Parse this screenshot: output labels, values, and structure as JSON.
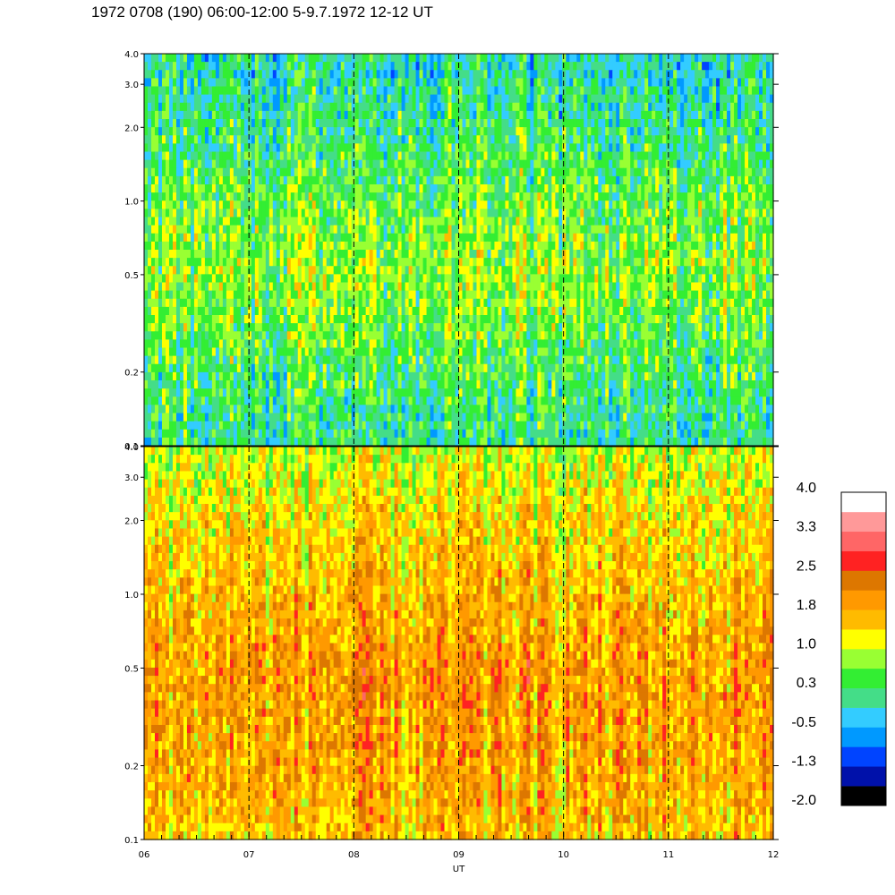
{
  "title": "1972 0708 (190) 06:00-12:00 5-9.7.1972  12-12 UT",
  "chart_data": {
    "type": "heatmap",
    "xlabel": "UT",
    "x_ticks": [
      "06",
      "07",
      "08",
      "09",
      "10",
      "11",
      "12"
    ],
    "x_range": [
      6,
      12
    ],
    "panels": [
      {
        "name": "",
        "y_scale": "log",
        "y_range": [
          0.1,
          4.0
        ],
        "y_ticks": [
          {
            "value": 0.1,
            "label": "0.1"
          },
          {
            "value": 0.2,
            "label": "0.2"
          },
          {
            "value": 0.5,
            "label": "0.5"
          },
          {
            "value": 1.0,
            "label": "1.0"
          },
          {
            "value": 2.0,
            "label": "2.0"
          },
          {
            "value": 3.0,
            "label": "3.0"
          },
          {
            "value": 4.0,
            "label": "4.0"
          }
        ],
        "typical_level_by_freq": [
          {
            "freq": 0.1,
            "level": 0.0
          },
          {
            "freq": 0.2,
            "level": 0.3
          },
          {
            "freq": 0.5,
            "level": 0.8
          },
          {
            "freq": 1.0,
            "level": 0.5
          },
          {
            "freq": 2.0,
            "level": 0.1
          },
          {
            "freq": 4.0,
            "level": -0.2
          }
        ]
      },
      {
        "name": "",
        "y_scale": "log",
        "y_range": [
          0.1,
          4.0
        ],
        "y_ticks": [
          {
            "value": 0.1,
            "label": "0.1"
          },
          {
            "value": 0.2,
            "label": "0.2"
          },
          {
            "value": 0.5,
            "label": "0.5"
          },
          {
            "value": 1.0,
            "label": "1.0"
          },
          {
            "value": 2.0,
            "label": "2.0"
          },
          {
            "value": 3.0,
            "label": "3.0"
          },
          {
            "value": 4.0,
            "label": "4.0"
          }
        ],
        "typical_level_by_freq": [
          {
            "freq": 0.1,
            "level": 1.6
          },
          {
            "freq": 0.2,
            "level": 1.9
          },
          {
            "freq": 0.5,
            "level": 2.0
          },
          {
            "freq": 1.0,
            "level": 1.7
          },
          {
            "freq": 2.0,
            "level": 1.4
          },
          {
            "freq": 4.0,
            "level": 0.9
          }
        ]
      }
    ],
    "hour_markers": [
      7,
      8,
      9,
      10,
      11
    ],
    "colorbar": {
      "range": [
        -2.4,
        4.4
      ],
      "colors": [
        "#000000",
        "#0011aa",
        "#0044ff",
        "#0099ff",
        "#33ccff",
        "#44dd88",
        "#33ee33",
        "#99ff33",
        "#ffff00",
        "#ffbb00",
        "#ff9900",
        "#dd7700",
        "#ff2222",
        "#ff6666",
        "#ff9999",
        "#ffffff"
      ],
      "labels": [
        "-2.0",
        "-1.3",
        "-0.5",
        "0.3",
        "1.0",
        "1.8",
        "2.5",
        "3.3",
        "4.0"
      ]
    }
  }
}
